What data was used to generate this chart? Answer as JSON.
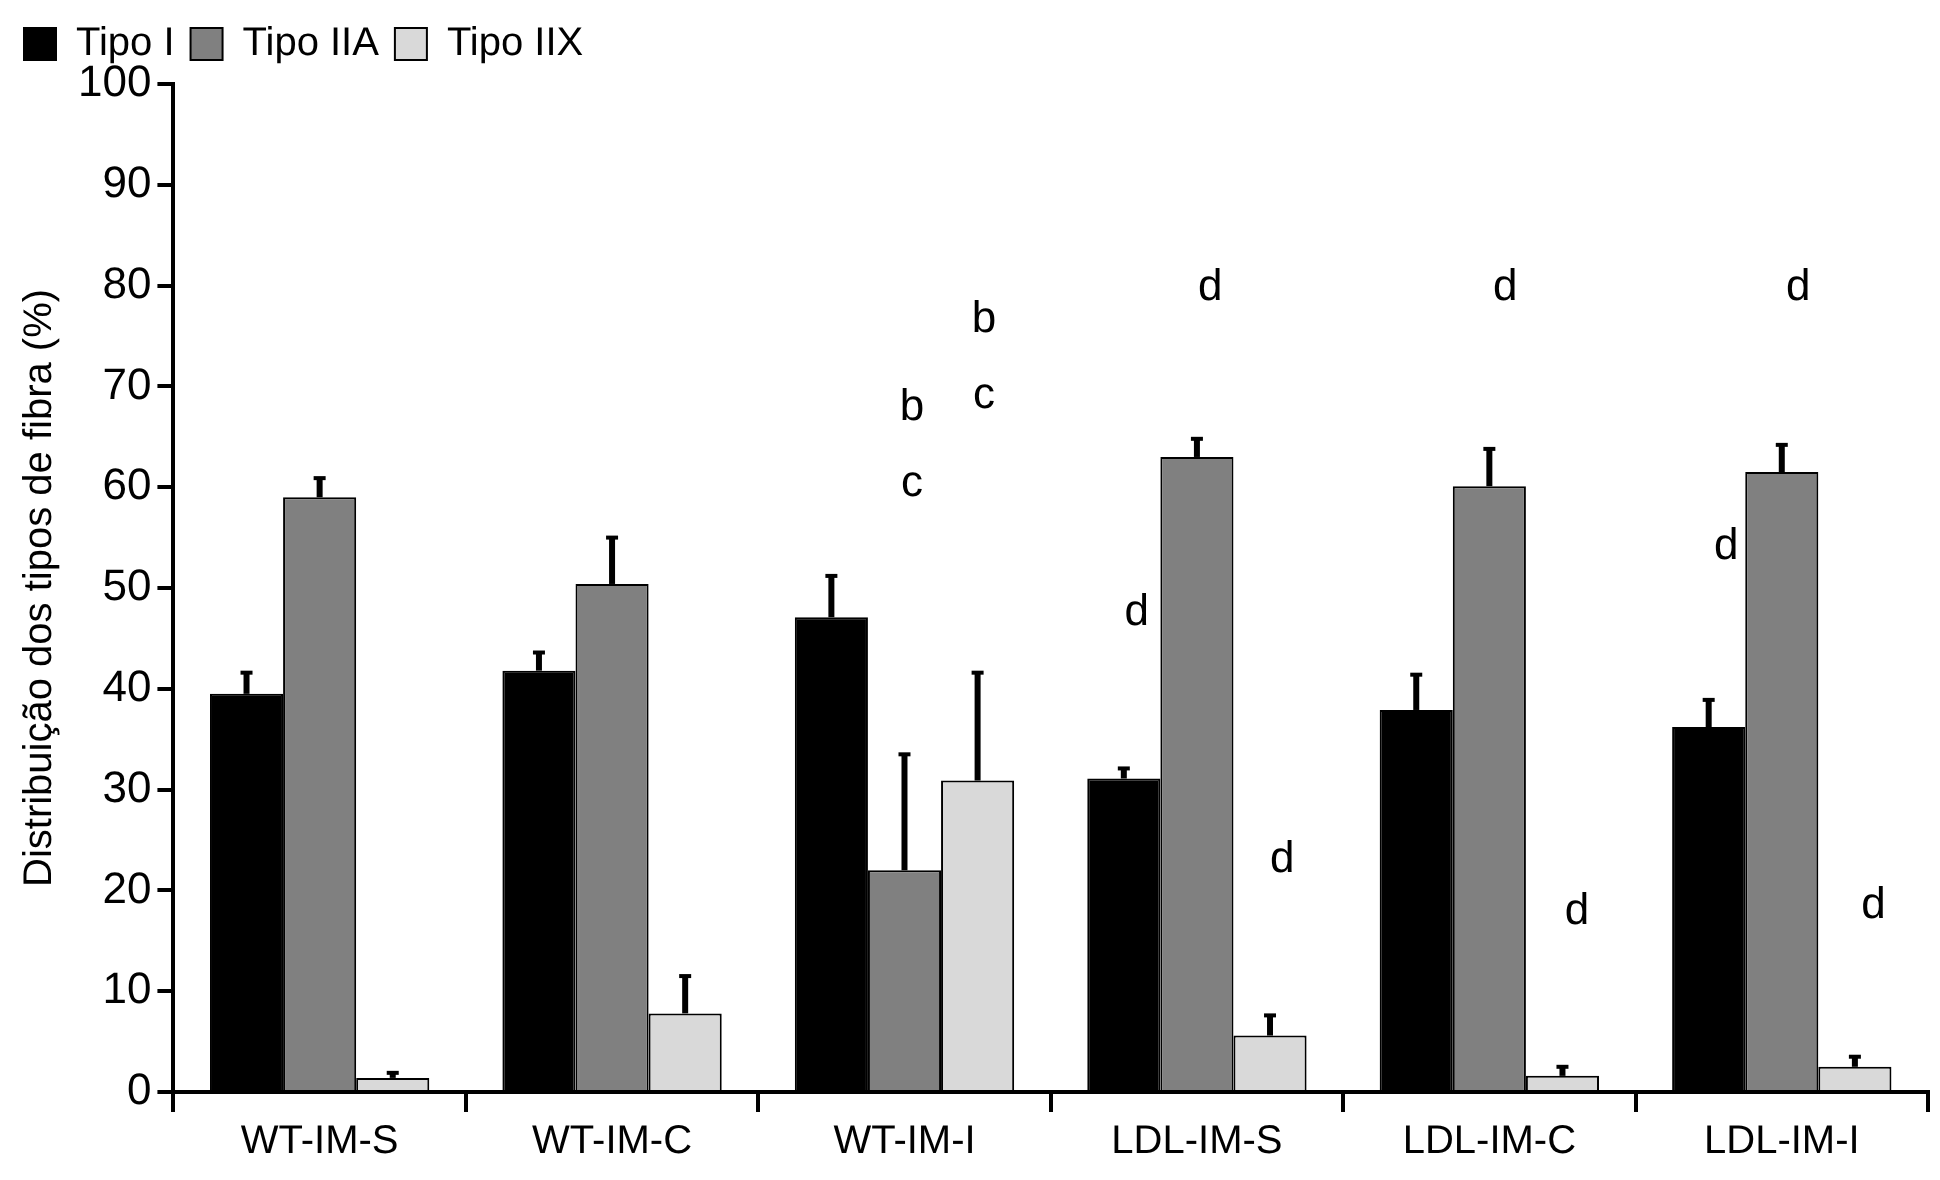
{
  "chart_data": {
    "type": "bar",
    "ylabel": "Distribuição dos tipos de fibra (%)",
    "categories": [
      "WT-IM-S",
      "WT-IM-C",
      "WT-IM-I",
      "LDL-IM-S",
      "LDL-IM-C",
      "LDL-IM-I"
    ],
    "series": [
      {
        "name": "Tipo I",
        "color": "#000000",
        "values": [
          39.5,
          41.8,
          47.1,
          31.1,
          37.9,
          36.2
        ],
        "errors": [
          [
            39.5,
            41.6
          ],
          [
            41.8,
            43.6
          ],
          [
            47.1,
            51.2
          ],
          [
            31.1,
            32.1
          ],
          [
            37.9,
            41.4
          ],
          [
            36.2,
            38.9
          ]
        ]
      },
      {
        "name": "Tipo IIA",
        "color": "#808080",
        "values": [
          59,
          50.4,
          22,
          63,
          60.1,
          61.5
        ],
        "errors": [
          [
            59,
            60.9
          ],
          [
            50.4,
            55
          ],
          [
            22,
            33.5
          ],
          [
            63,
            64.8
          ],
          [
            60.1,
            63.8
          ],
          [
            61.5,
            64.2
          ]
        ]
      },
      {
        "name": "Tipo IIX",
        "color": "#d9d9d9",
        "values": [
          1.4,
          7.8,
          30.9,
          5.6,
          1.6,
          2.5
        ],
        "errors": [
          [
            1.4,
            1.9
          ],
          [
            7.8,
            11.5
          ],
          [
            30.9,
            41.6
          ],
          [
            5.6,
            7.6
          ],
          [
            1.6,
            2.5
          ],
          [
            2.5,
            3.5
          ]
        ]
      }
    ],
    "ylim": [
      0,
      100
    ],
    "yticks": [
      0,
      10,
      20,
      30,
      40,
      50,
      60,
      70,
      80,
      90,
      100
    ],
    "grid": false,
    "legend": "top left",
    "annotations": [
      "b\nc",
      "b\nc",
      "d",
      "d",
      "d",
      "d",
      "d",
      "d",
      "d",
      "d"
    ]
  }
}
